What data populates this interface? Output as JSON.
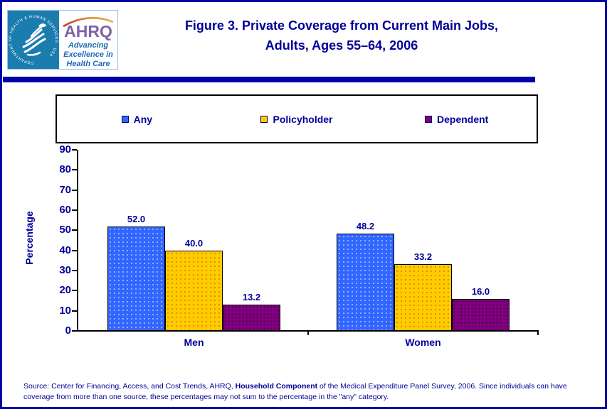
{
  "header": {
    "logo": {
      "hhs_ring_text": "DEPARTMENT OF HEALTH & HUMAN SERVICES · USA",
      "ahrq_acronym": "AHRQ",
      "tagline_line1": "Advancing",
      "tagline_line2": "Excellence in",
      "tagline_line3": "Health Care"
    },
    "title_line1": "Figure 3. Private Coverage from Current Main Jobs,",
    "title_line2": "Adults, Ages 55–64, 2006"
  },
  "chart_data": {
    "type": "bar",
    "title": "Figure 3. Private Coverage from Current Main Jobs, Adults, Ages 55–64, 2006",
    "categories": [
      "Men",
      "Women"
    ],
    "series": [
      {
        "name": "Any",
        "values": [
          52.0,
          48.2
        ],
        "color": "#3366FF"
      },
      {
        "name": "Policyholder",
        "values": [
          40.0,
          33.2
        ],
        "color": "#FFCC00"
      },
      {
        "name": "Dependent",
        "values": [
          13.2,
          16.0
        ],
        "color": "#800080"
      }
    ],
    "value_labels": [
      [
        "52.0",
        "40.0",
        "13.2"
      ],
      [
        "48.2",
        "33.2",
        "16.0"
      ]
    ],
    "xlabel": "",
    "ylabel": "Percentage",
    "ylim": [
      0,
      90
    ],
    "yticks": [
      90,
      80,
      70,
      60,
      50,
      40,
      30,
      20,
      10,
      0
    ],
    "grid": false,
    "legend_position": "top"
  },
  "source": {
    "prefix": "Source: Center for Financing, Access, and Cost Trends, AHRQ, ",
    "bold": "Household Component",
    "suffix_line1": " of the Medical Expenditure Panel Survey, 2006. Since individuals can have",
    "line2": "coverage from more than one source, these percentages may not sum to the percentage in the \"any\" category."
  },
  "colors": {
    "frame_navy": "#0000A8",
    "text_navy": "#000099",
    "hhs_teal": "#1B7CAE",
    "ahrq_purple": "#7D64A8",
    "ahrq_arc_orange": "#DE8A2E",
    "tagline_blue": "#1F6CB5",
    "bar_any": "#3366FF",
    "bar_policyholder": "#FFCC00",
    "bar_dependent": "#800080"
  }
}
